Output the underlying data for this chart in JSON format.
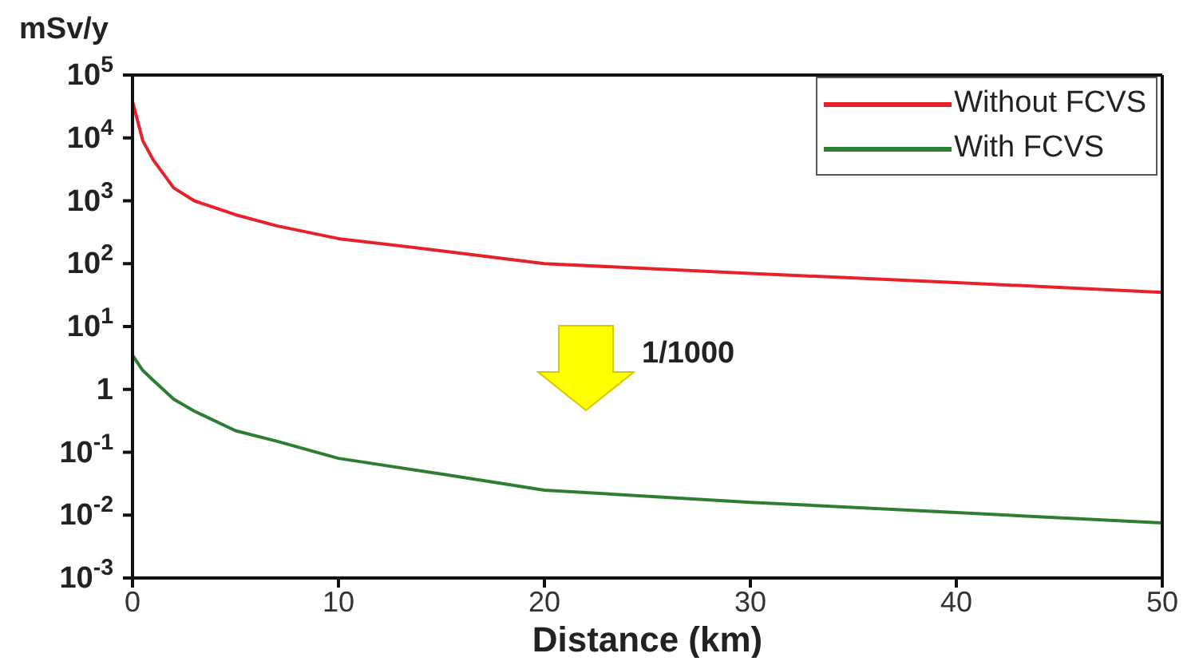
{
  "chart_data": {
    "type": "line",
    "xlabel": "Distance (km)",
    "ylabel": "mSv/y",
    "annotations": [
      "1/1000"
    ],
    "x": [
      0,
      0.5,
      1,
      2,
      3,
      5,
      7,
      10,
      15,
      20,
      30,
      40,
      50
    ],
    "series": [
      {
        "name": "Without FCVS",
        "color": "#e8202a",
        "values": [
          38000,
          9000,
          4500,
          1600,
          1000,
          600,
          400,
          250,
          160,
          100,
          70,
          50,
          35
        ]
      },
      {
        "name": "With FCVS",
        "color": "#2e7d32",
        "values": [
          3.5,
          2,
          1.4,
          0.7,
          0.45,
          0.22,
          0.15,
          0.08,
          0.045,
          0.025,
          0.016,
          0.011,
          0.0075
        ]
      }
    ],
    "xlim": [
      0,
      50
    ],
    "xticks": [
      0,
      10,
      20,
      30,
      40,
      50
    ],
    "ylim": [
      0.001,
      100000
    ],
    "yticks": [
      {
        "value": 0.001,
        "label": "10$^{-3}$"
      },
      {
        "value": 0.01,
        "label": "10$^{-2}$"
      },
      {
        "value": 0.1,
        "label": "10$^{-1}$"
      },
      1,
      {
        "value": 10,
        "label": "10$^{1}$"
      },
      {
        "value": 100,
        "label": "10$^{2}$"
      },
      {
        "value": 1000,
        "label": "10$^{3}$"
      },
      {
        "value": 10000,
        "label": "10$^{4}$"
      },
      {
        "value": 100000,
        "label": "10$^{5}$"
      }
    ],
    "log": "y",
    "grid": false,
    "legend": "top right",
    "marker": "none",
    "line_style": "solid"
  }
}
